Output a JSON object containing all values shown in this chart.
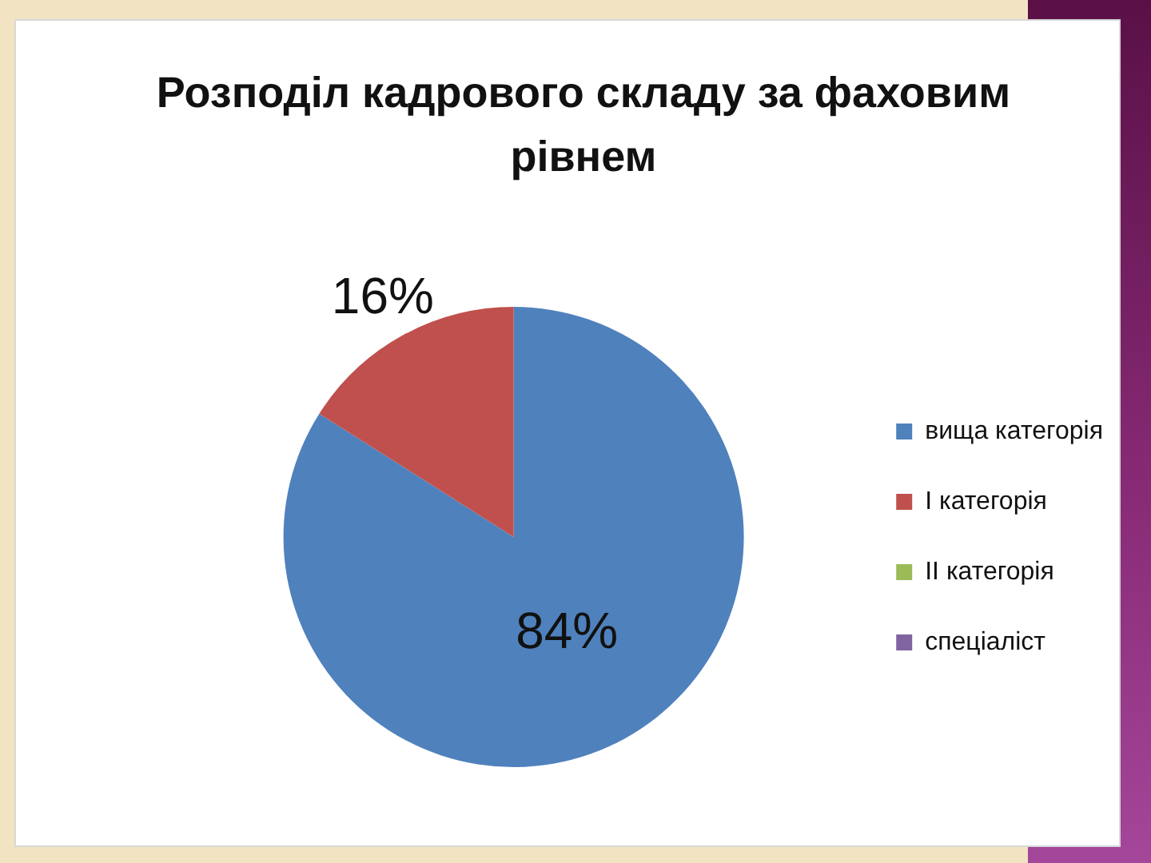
{
  "chart_data": {
    "type": "pie",
    "title": "Розподіл кадрового складу за фаховим рівнем",
    "categories": [
      "вища категорія",
      "І категорія",
      "ІІ категорія",
      "спеціаліст"
    ],
    "values": [
      84,
      16,
      0,
      0
    ],
    "colors": [
      "#4f81bd",
      "#c0504d",
      "#9bbb59",
      "#8064a2"
    ],
    "value_labels": [
      "84%",
      "16%",
      null,
      null
    ],
    "legend": "right"
  }
}
